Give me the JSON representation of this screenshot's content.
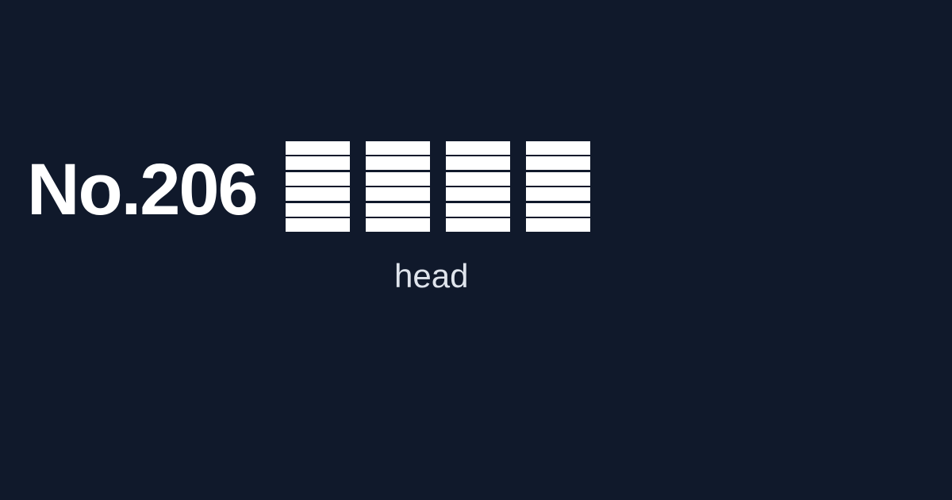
{
  "card": {
    "number": "No.206",
    "glyphs": [
      {
        "bars": 6
      },
      {
        "bars": 6
      },
      {
        "bars": 6
      },
      {
        "bars": 6
      }
    ],
    "caption": "head"
  },
  "colors": {
    "background": "#10192b",
    "text": "#ffffff",
    "caption": "#dfe4ec"
  }
}
